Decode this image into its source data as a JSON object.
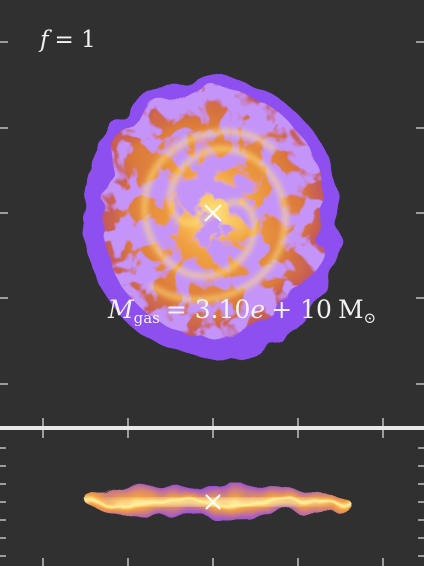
{
  "panel_label": {
    "symbol": "f",
    "rest": "= 1"
  },
  "mass_label": {
    "symbol": "M",
    "subscript": "gas",
    "rest": "= 3.10",
    "e": "e",
    "exponent": "+ 10",
    "unit": "M",
    "unit_sub": "⊙"
  }
}
